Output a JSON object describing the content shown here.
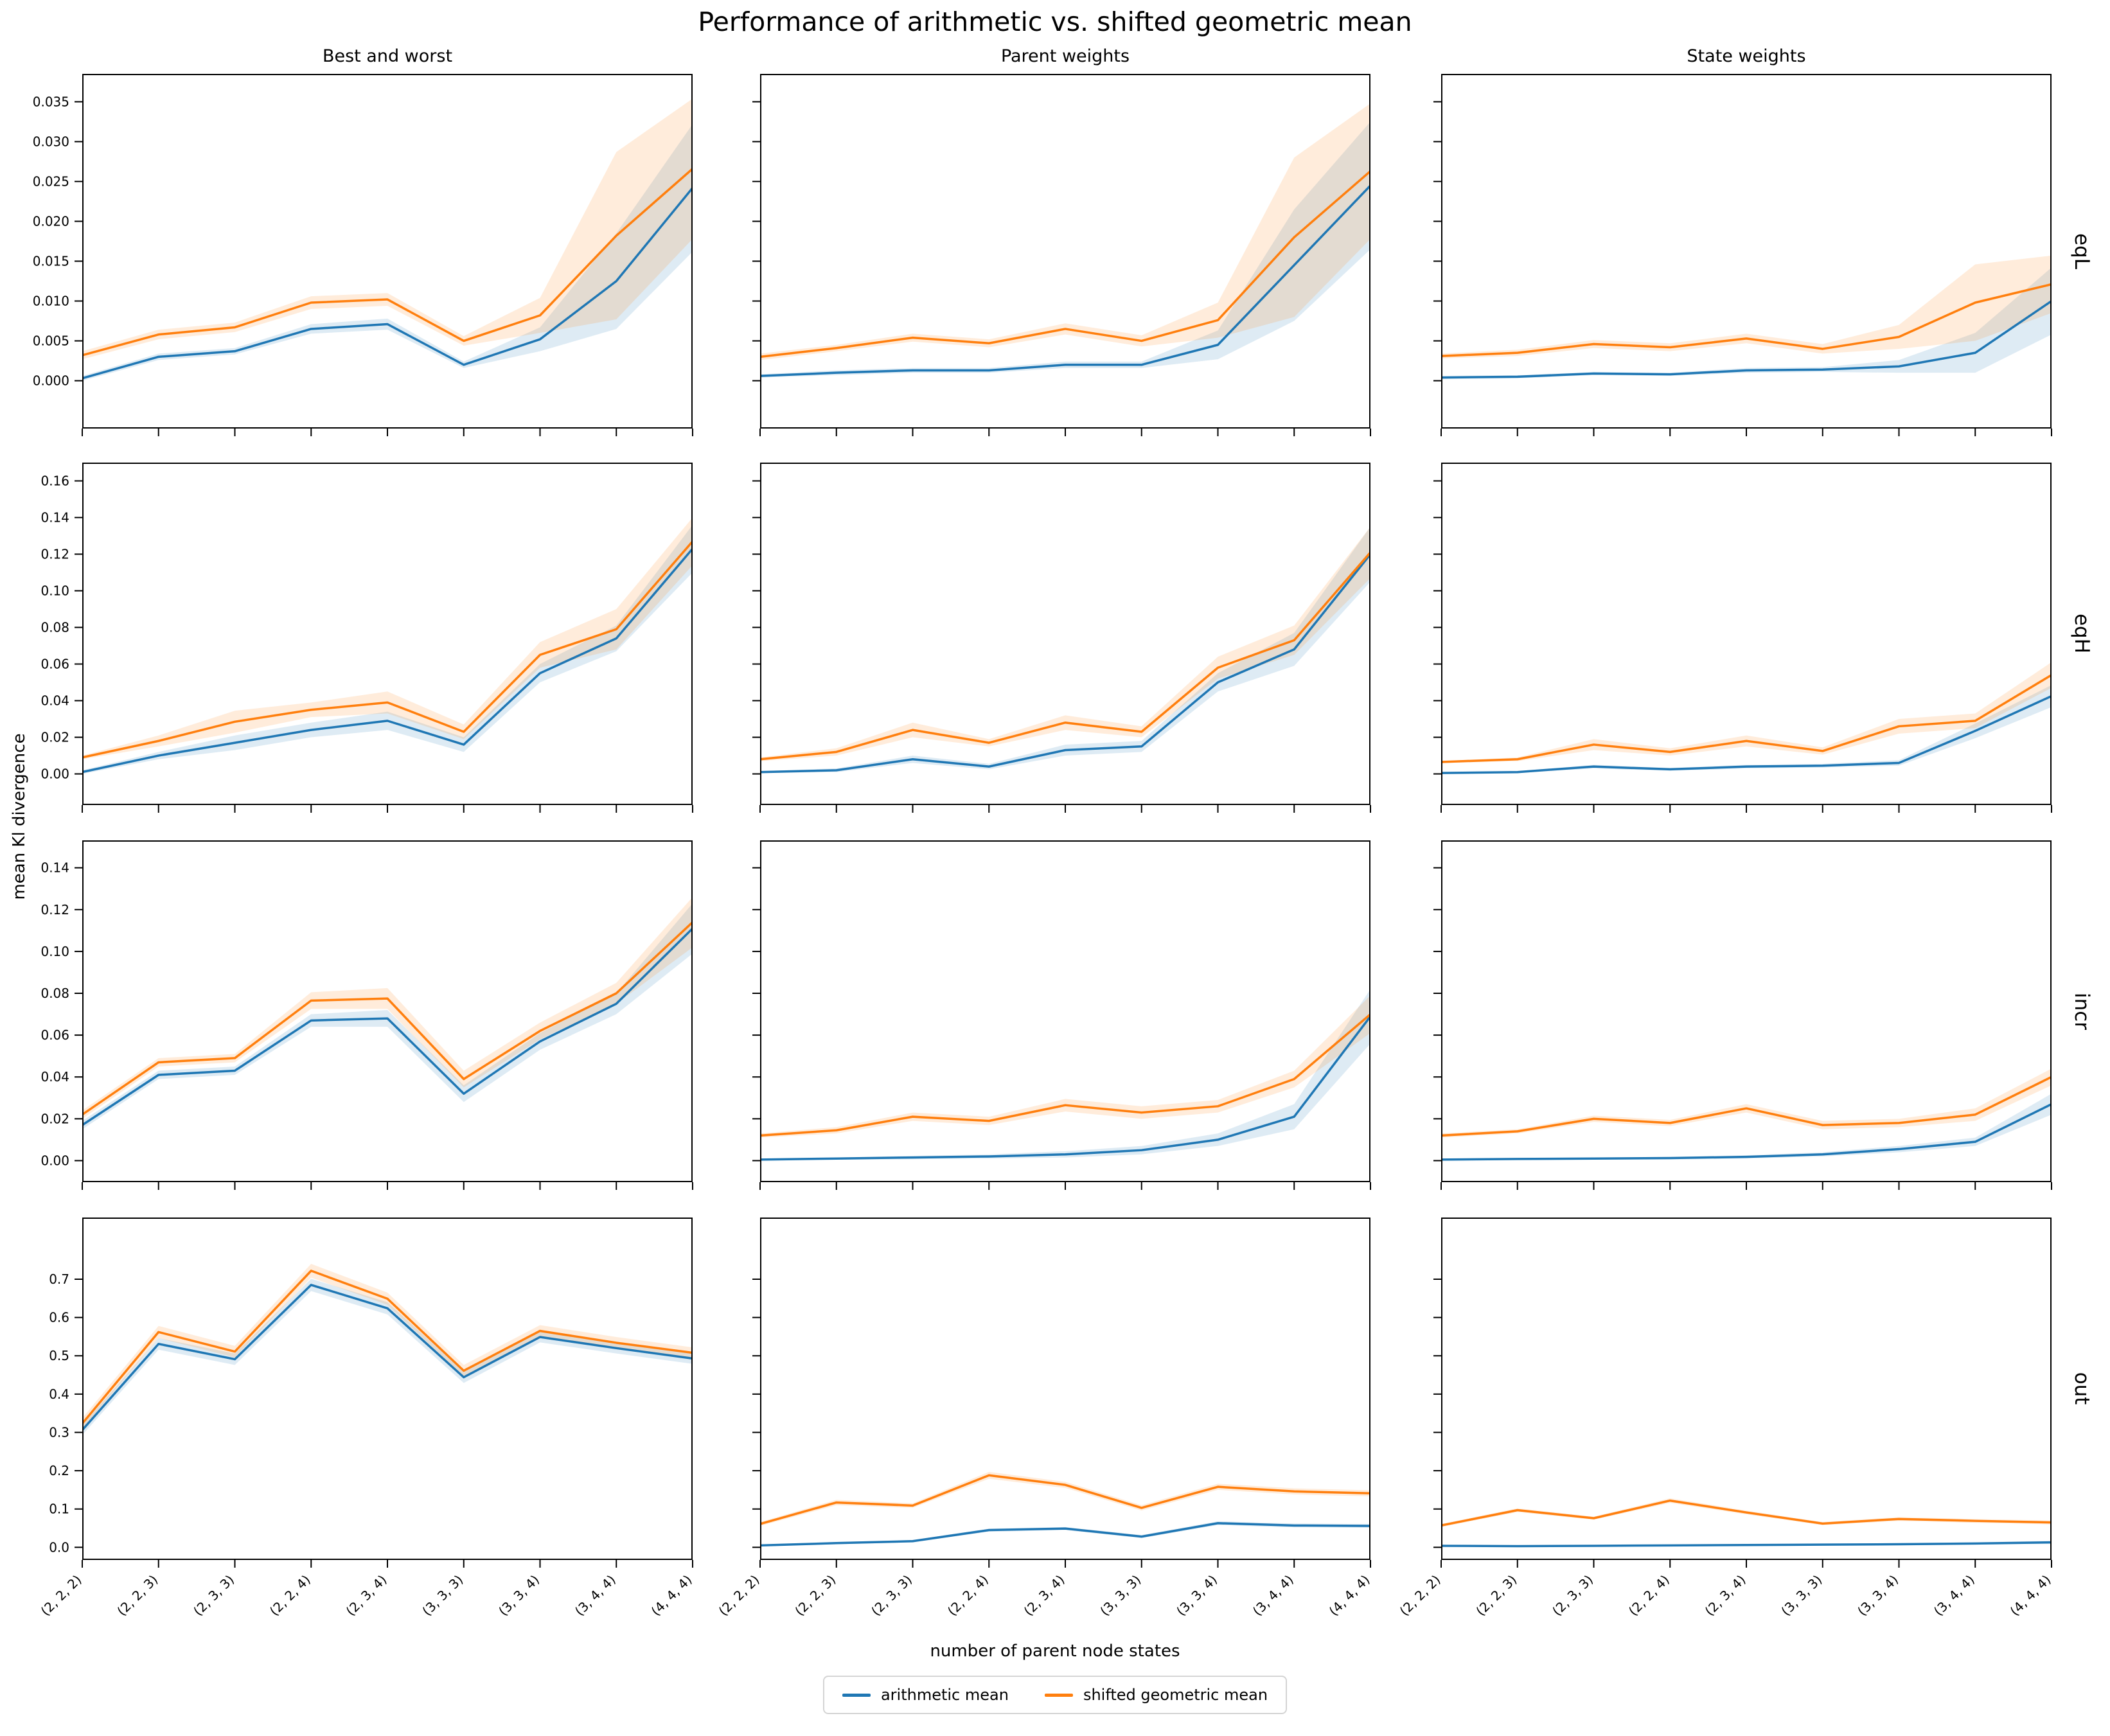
{
  "chart_data": {
    "type": "line",
    "title": "Performance of arithmetic vs. shifted geometric mean",
    "xlabel": "number of parent node states",
    "ylabel": "mean Kl divergence",
    "categories": [
      "(2, 2, 2)",
      "(2, 2, 3)",
      "(2, 3, 3)",
      "(2, 2, 4)",
      "(2, 3, 4)",
      "(3, 3, 3)",
      "(3, 3, 4)",
      "(3, 4, 4)",
      "(4, 4, 4)"
    ],
    "col_titles": [
      "Best and worst",
      "Parent weights",
      "State weights"
    ],
    "row_labels": [
      "eqL",
      "eqH",
      "incr",
      "out"
    ],
    "legend": [
      {
        "label": "arithmetic mean",
        "color": "#1f77b4"
      },
      {
        "label": "shifted geometric mean",
        "color": "#ff7f0e"
      }
    ],
    "band_opacity": 0.15,
    "grid": false,
    "legend_position": "bottom-center",
    "rows": [
      {
        "label": "eqL",
        "ylim": [
          -0.006,
          0.0385
        ],
        "yticks": [
          0.0,
          0.005,
          0.01,
          0.015,
          0.02,
          0.025,
          0.03,
          0.035
        ],
        "ytick_labels": [
          "0.000",
          "0.005",
          "0.010",
          "0.015",
          "0.020",
          "0.025",
          "0.030",
          "0.035"
        ],
        "cells": [
          {
            "col": "Best and worst",
            "arithmetic": [
              0.0003,
              0.003,
              0.0037,
              0.0065,
              0.0071,
              0.002,
              0.0052,
              0.0125,
              0.0242
            ],
            "arithmetic_band": [
              0.0003,
              0.0004,
              0.0004,
              0.0006,
              0.0007,
              0.0004,
              0.0015,
              0.006,
              0.008
            ],
            "geometric": [
              0.0032,
              0.0058,
              0.0067,
              0.0098,
              0.0102,
              0.005,
              0.0082,
              0.0182,
              0.0266
            ],
            "geometric_band": [
              0.0005,
              0.0006,
              0.0006,
              0.0008,
              0.0008,
              0.0006,
              0.0022,
              0.0105,
              0.0088
            ]
          },
          {
            "col": "Parent weights",
            "arithmetic": [
              0.0006,
              0.001,
              0.0013,
              0.0013,
              0.002,
              0.002,
              0.0045,
              0.0145,
              0.0245
            ],
            "arithmetic_band": [
              0.0002,
              0.0003,
              0.0003,
              0.0003,
              0.0004,
              0.0004,
              0.0018,
              0.007,
              0.008
            ],
            "geometric": [
              0.003,
              0.0041,
              0.0054,
              0.0047,
              0.0065,
              0.005,
              0.0076,
              0.018,
              0.0263
            ],
            "geometric_band": [
              0.0004,
              0.0004,
              0.0005,
              0.0005,
              0.0007,
              0.0007,
              0.0022,
              0.01,
              0.0085
            ]
          },
          {
            "col": "State weights",
            "arithmetic": [
              0.0004,
              0.0005,
              0.0009,
              0.0008,
              0.0013,
              0.0014,
              0.0018,
              0.0035,
              0.01
            ],
            "arithmetic_band": [
              0.0002,
              0.0002,
              0.0002,
              0.0002,
              0.0003,
              0.0003,
              0.0008,
              0.0025,
              0.0042
            ],
            "geometric": [
              0.0031,
              0.0035,
              0.0046,
              0.0042,
              0.0053,
              0.004,
              0.0055,
              0.0098,
              0.0121
            ],
            "geometric_band": [
              0.0003,
              0.0004,
              0.0005,
              0.0005,
              0.0006,
              0.0006,
              0.0015,
              0.0048,
              0.0036
            ]
          }
        ]
      },
      {
        "label": "eqH",
        "ylim": [
          -0.017,
          0.17
        ],
        "yticks": [
          0.0,
          0.02,
          0.04,
          0.06,
          0.08,
          0.1,
          0.12,
          0.14,
          0.16
        ],
        "ytick_labels": [
          "0.00",
          "0.02",
          "0.04",
          "0.06",
          "0.08",
          "0.10",
          "0.12",
          "0.14",
          "0.16"
        ],
        "cells": [
          {
            "col": "Best and worst",
            "arithmetic": [
              0.001,
              0.01,
              0.017,
              0.024,
              0.029,
              0.016,
              0.055,
              0.074,
              0.123
            ],
            "arithmetic_band": [
              0.001,
              0.002,
              0.004,
              0.004,
              0.005,
              0.004,
              0.005,
              0.007,
              0.013
            ],
            "geometric": [
              0.009,
              0.018,
              0.0285,
              0.035,
              0.039,
              0.023,
              0.065,
              0.079,
              0.127
            ],
            "geometric_band": [
              0.001,
              0.003,
              0.006,
              0.004,
              0.006,
              0.004,
              0.007,
              0.011,
              0.013
            ]
          },
          {
            "col": "Parent weights",
            "arithmetic": [
              0.001,
              0.002,
              0.008,
              0.004,
              0.013,
              0.015,
              0.05,
              0.068,
              0.12
            ],
            "arithmetic_band": [
              0.0005,
              0.001,
              0.002,
              0.0015,
              0.003,
              0.003,
              0.005,
              0.009,
              0.015
            ],
            "geometric": [
              0.008,
              0.012,
              0.024,
              0.017,
              0.028,
              0.023,
              0.058,
              0.073,
              0.121
            ],
            "geometric_band": [
              0.001,
              0.002,
              0.004,
              0.002,
              0.004,
              0.003,
              0.006,
              0.008,
              0.014
            ]
          },
          {
            "col": "State weights",
            "arithmetic": [
              0.0005,
              0.001,
              0.004,
              0.0025,
              0.004,
              0.0045,
              0.006,
              0.0235,
              0.0425
            ],
            "arithmetic_band": [
              0.0003,
              0.0005,
              0.001,
              0.0008,
              0.001,
              0.001,
              0.0015,
              0.004,
              0.006
            ],
            "geometric": [
              0.0065,
              0.008,
              0.016,
              0.012,
              0.018,
              0.0125,
              0.026,
              0.029,
              0.054
            ],
            "geometric_band": [
              0.0005,
              0.001,
              0.003,
              0.002,
              0.003,
              0.002,
              0.004,
              0.004,
              0.007
            ]
          }
        ]
      },
      {
        "label": "incr",
        "ylim": [
          -0.0103,
          0.1531
        ],
        "yticks": [
          0.0,
          0.02,
          0.04,
          0.06,
          0.08,
          0.1,
          0.12,
          0.14
        ],
        "ytick_labels": [
          "0.00",
          "0.02",
          "0.04",
          "0.06",
          "0.08",
          "0.10",
          "0.12",
          "0.14"
        ],
        "cells": [
          {
            "col": "Best and worst",
            "arithmetic": [
              0.017,
              0.041,
              0.043,
              0.067,
              0.068,
              0.032,
              0.057,
              0.075,
              0.111
            ],
            "arithmetic_band": [
              0.002,
              0.002,
              0.002,
              0.003,
              0.004,
              0.004,
              0.004,
              0.005,
              0.012
            ],
            "geometric": [
              0.022,
              0.047,
              0.049,
              0.0765,
              0.0775,
              0.039,
              0.062,
              0.08,
              0.114
            ],
            "geometric_band": [
              0.002,
              0.002,
              0.002,
              0.004,
              0.005,
              0.004,
              0.004,
              0.005,
              0.012
            ]
          },
          {
            "col": "Parent weights",
            "arithmetic": [
              0.0005,
              0.001,
              0.0015,
              0.002,
              0.003,
              0.005,
              0.01,
              0.021,
              0.069
            ],
            "arithmetic_band": [
              0.0003,
              0.0005,
              0.0008,
              0.001,
              0.0015,
              0.002,
              0.003,
              0.006,
              0.013
            ],
            "geometric": [
              0.012,
              0.0145,
              0.021,
              0.019,
              0.0265,
              0.023,
              0.026,
              0.039,
              0.07
            ],
            "geometric_band": [
              0.001,
              0.0015,
              0.002,
              0.002,
              0.003,
              0.003,
              0.003,
              0.004,
              0.009
            ]
          },
          {
            "col": "State weights",
            "arithmetic": [
              0.0005,
              0.0008,
              0.001,
              0.0012,
              0.0018,
              0.003,
              0.0055,
              0.009,
              0.027
            ],
            "arithmetic_band": [
              0.0003,
              0.0004,
              0.0005,
              0.0006,
              0.0008,
              0.001,
              0.0015,
              0.002,
              0.005
            ],
            "geometric": [
              0.012,
              0.014,
              0.02,
              0.018,
              0.025,
              0.017,
              0.018,
              0.022,
              0.04
            ],
            "geometric_band": [
              0.001,
              0.001,
              0.0015,
              0.0015,
              0.002,
              0.002,
              0.002,
              0.003,
              0.004
            ]
          }
        ]
      },
      {
        "label": "out",
        "ylim": [
          -0.033,
          0.861
        ],
        "yticks": [
          0.0,
          0.1,
          0.2,
          0.3,
          0.4,
          0.5,
          0.6,
          0.7
        ],
        "ytick_labels": [
          "0.0",
          "0.1",
          "0.2",
          "0.3",
          "0.4",
          "0.5",
          "0.6",
          "0.7"
        ],
        "cells": [
          {
            "col": "Best and worst",
            "arithmetic": [
              0.306,
              0.531,
              0.491,
              0.685,
              0.624,
              0.444,
              0.549,
              0.52,
              0.493
            ],
            "arithmetic_band": [
              0.013,
              0.015,
              0.015,
              0.016,
              0.016,
              0.015,
              0.014,
              0.014,
              0.014
            ],
            "geometric": [
              0.323,
              0.562,
              0.511,
              0.722,
              0.649,
              0.461,
              0.565,
              0.534,
              0.508
            ],
            "geometric_band": [
              0.014,
              0.016,
              0.015,
              0.018,
              0.016,
              0.015,
              0.015,
              0.015,
              0.014
            ]
          },
          {
            "col": "Parent weights",
            "arithmetic": [
              0.005,
              0.011,
              0.016,
              0.045,
              0.049,
              0.028,
              0.063,
              0.057,
              0.056
            ],
            "arithmetic_band": [
              0.002,
              0.003,
              0.003,
              0.004,
              0.004,
              0.004,
              0.005,
              0.005,
              0.005
            ],
            "geometric": [
              0.061,
              0.117,
              0.109,
              0.188,
              0.163,
              0.103,
              0.158,
              0.146,
              0.141
            ],
            "geometric_band": [
              0.005,
              0.007,
              0.006,
              0.009,
              0.008,
              0.007,
              0.008,
              0.008,
              0.008
            ]
          },
          {
            "col": "State weights",
            "arithmetic": [
              0.004,
              0.003,
              0.004,
              0.005,
              0.006,
              0.007,
              0.008,
              0.01,
              0.013
            ],
            "arithmetic_band": [
              0.002,
              0.002,
              0.002,
              0.002,
              0.002,
              0.002,
              0.003,
              0.003,
              0.004
            ],
            "geometric": [
              0.057,
              0.097,
              0.076,
              0.122,
              0.091,
              0.062,
              0.074,
              0.069,
              0.065
            ],
            "geometric_band": [
              0.004,
              0.005,
              0.004,
              0.006,
              0.005,
              0.004,
              0.005,
              0.005,
              0.005
            ]
          }
        ]
      }
    ]
  }
}
